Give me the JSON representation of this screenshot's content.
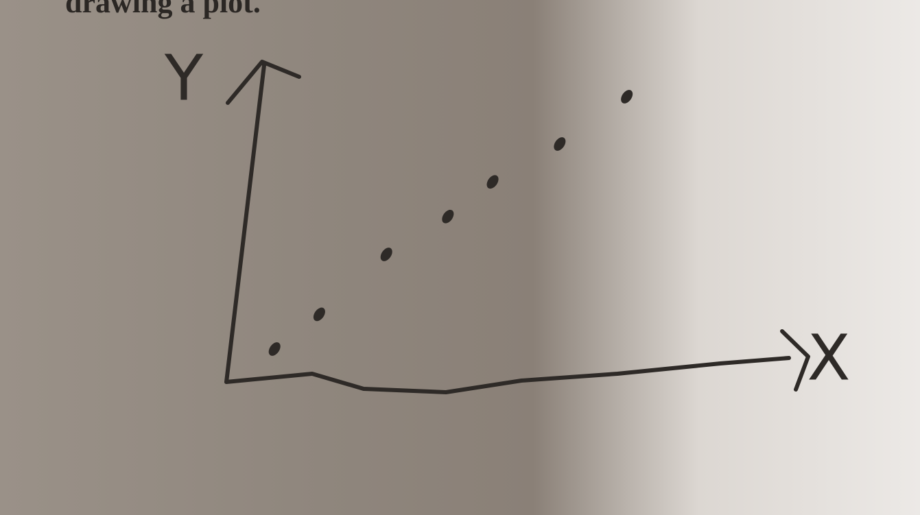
{
  "chart_data": {
    "type": "scatter",
    "caption": "drawing a plot.",
    "x_label": "X",
    "y_label": "Y",
    "x": [
      0.8,
      1.6,
      2.8,
      3.9,
      4.7,
      5.9,
      7.1
    ],
    "values": [
      1.0,
      2.1,
      4.0,
      5.2,
      6.3,
      7.5,
      9.0
    ],
    "color": "#2e2a27",
    "xlim": [
      0,
      10
    ],
    "ylim": [
      0,
      10
    ]
  }
}
